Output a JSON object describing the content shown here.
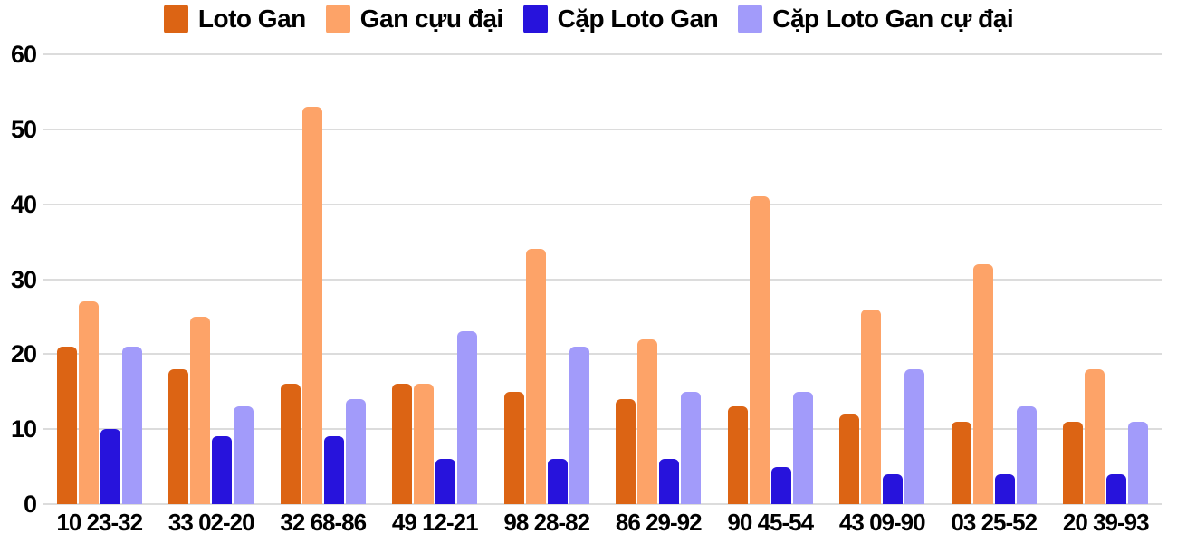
{
  "chart_data": {
    "type": "bar",
    "categories": [
      "10 23-32",
      "33 02-20",
      "32 68-86",
      "49 12-21",
      "98 28-82",
      "86 29-92",
      "90 45-54",
      "43 09-90",
      "03 25-52",
      "20 39-93"
    ],
    "series": [
      {
        "name": "Loto Gan",
        "color": "#DC6414",
        "values": [
          21,
          18,
          16,
          16,
          15,
          14,
          13,
          12,
          11,
          11
        ]
      },
      {
        "name": "Gan cựu đại",
        "color": "#FDA368",
        "values": [
          27,
          25,
          53,
          16,
          34,
          22,
          41,
          26,
          32,
          18
        ]
      },
      {
        "name": "Cặp Loto Gan",
        "color": "#2713DC",
        "values": [
          10,
          9,
          9,
          6,
          6,
          6,
          5,
          4,
          4,
          4
        ]
      },
      {
        "name": "Cặp Loto Gan cự đại",
        "color": "#A29BFA",
        "values": [
          21,
          13,
          14,
          23,
          21,
          15,
          15,
          18,
          13,
          11
        ]
      }
    ],
    "ylim": [
      0,
      60
    ],
    "yticks": [
      0,
      10,
      20,
      30,
      40,
      50,
      60
    ],
    "grid": true,
    "legend_position": "top",
    "colors": {
      "gridline": "#dcdcdc",
      "text": "#000000",
      "background": "#ffffff"
    }
  }
}
